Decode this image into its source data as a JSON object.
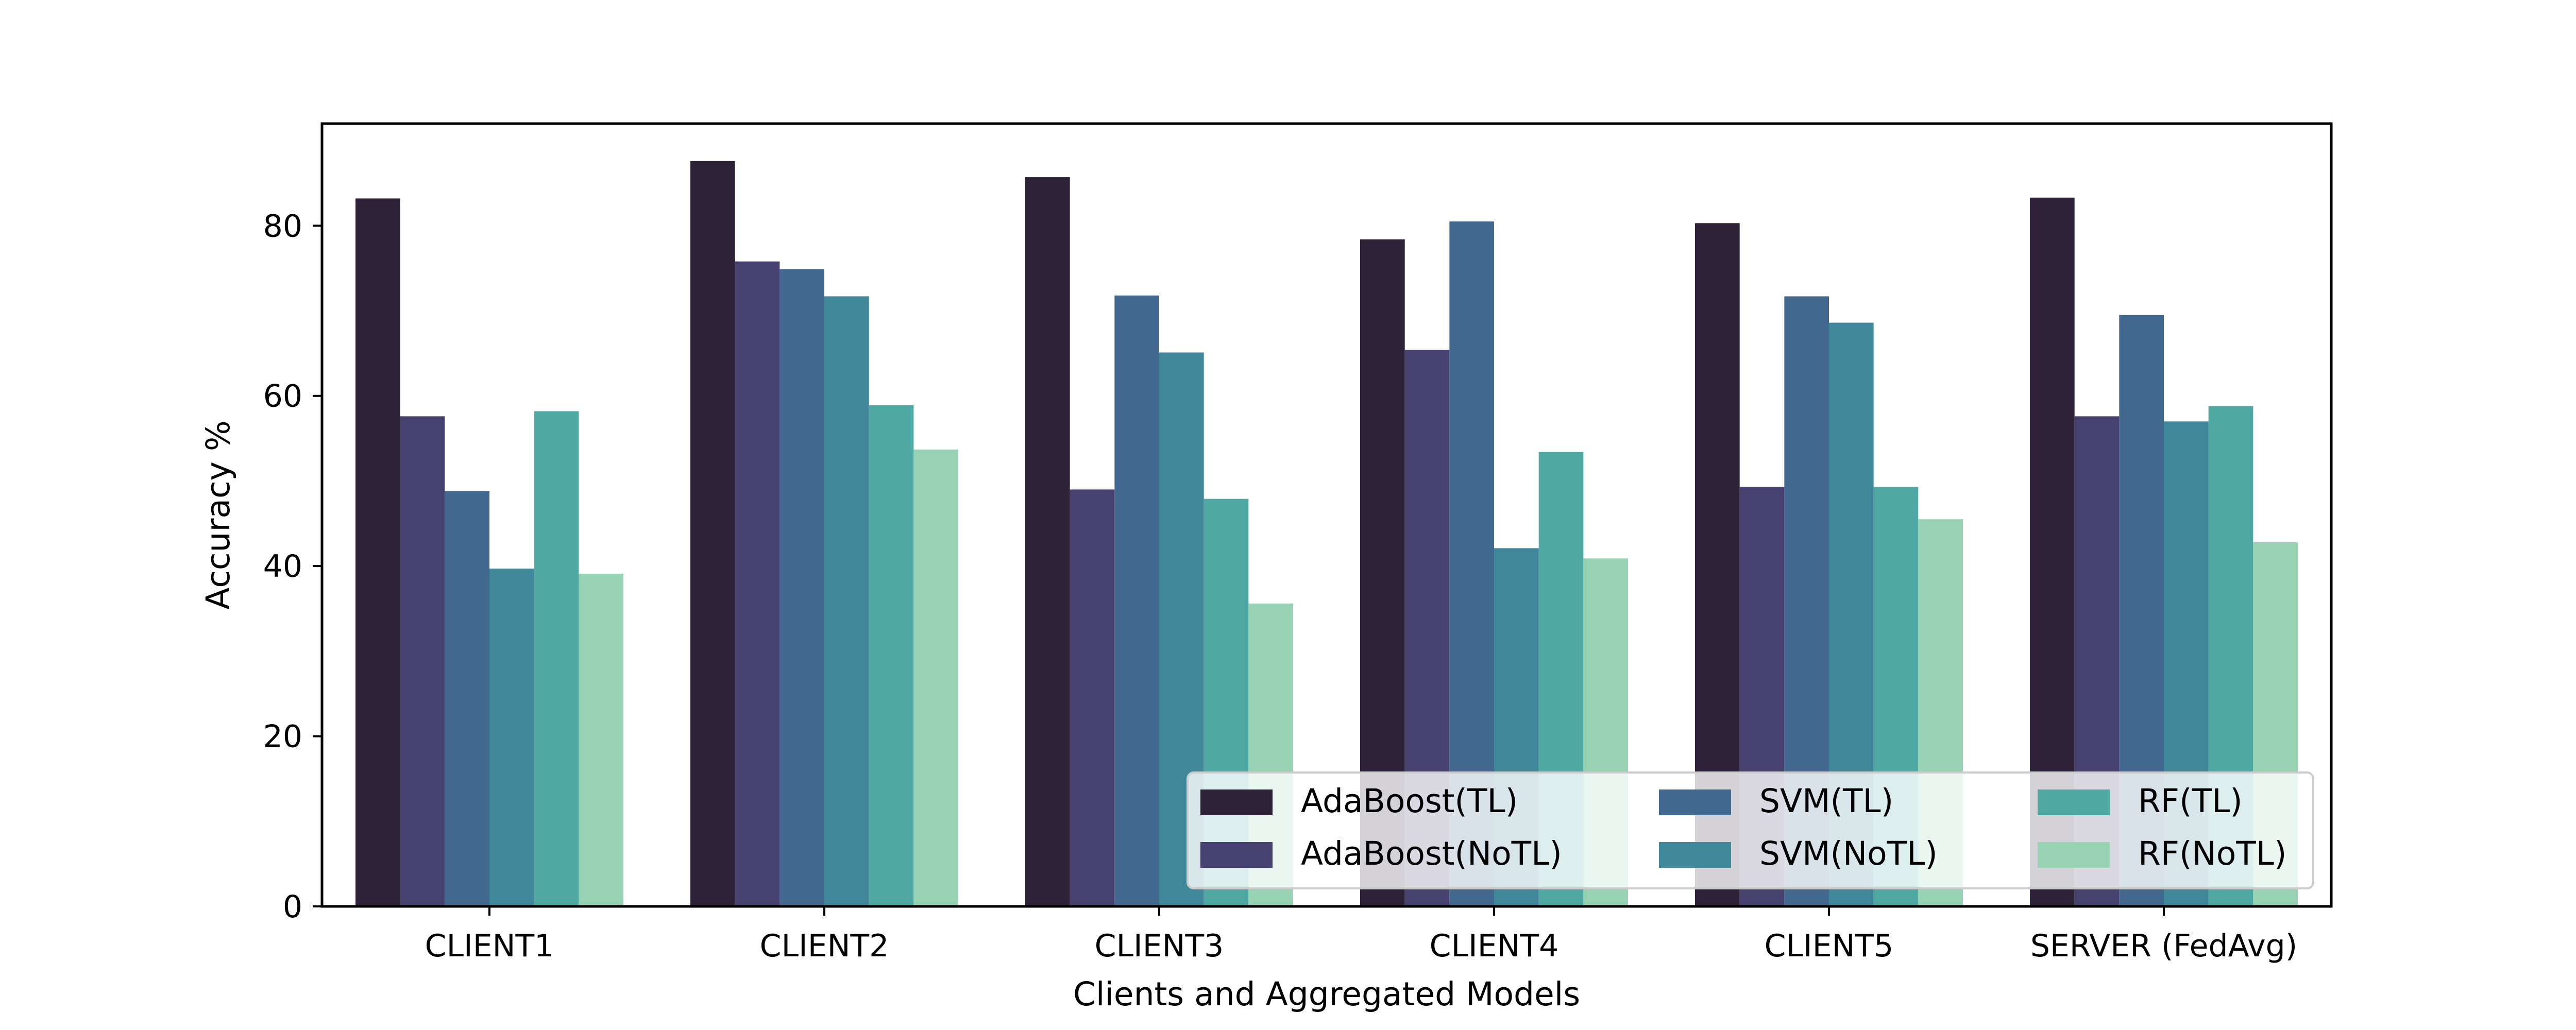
{
  "chart_data": {
    "type": "bar",
    "title": "",
    "xlabel": "Clients and Aggregated Models",
    "ylabel": "Accuracy %",
    "ylim": [
      0,
      92
    ],
    "yticks": [
      0,
      20,
      40,
      60,
      80
    ],
    "grid": false,
    "legend_position": "lower right",
    "categories": [
      "CLIENT1",
      "CLIENT2",
      "CLIENT3",
      "CLIENT4",
      "CLIENT5",
      "SERVER (FedAvg)"
    ],
    "series": [
      {
        "name": "AdaBoost(TL)",
        "color": "#2e2238",
        "values": [
          83.2,
          87.6,
          85.7,
          78.4,
          80.3,
          83.3
        ]
      },
      {
        "name": "AdaBoost(NoTL)",
        "color": "#47416f",
        "values": [
          57.6,
          75.8,
          49.0,
          65.4,
          49.3,
          57.6
        ]
      },
      {
        "name": "SVM(TL)",
        "color": "#42688f",
        "values": [
          48.8,
          74.9,
          71.8,
          80.5,
          71.7,
          69.5
        ]
      },
      {
        "name": "SVM(NoTL)",
        "color": "#40879a",
        "values": [
          39.7,
          71.7,
          65.1,
          42.1,
          68.6,
          57.0
        ]
      },
      {
        "name": "RF(TL)",
        "color": "#50a8a3",
        "values": [
          58.2,
          58.9,
          47.9,
          53.4,
          49.3,
          58.8
        ]
      },
      {
        "name": "RF(NoTL)",
        "color": "#97d2b2",
        "values": [
          39.1,
          53.7,
          35.6,
          40.9,
          45.5,
          42.8
        ]
      }
    ]
  }
}
